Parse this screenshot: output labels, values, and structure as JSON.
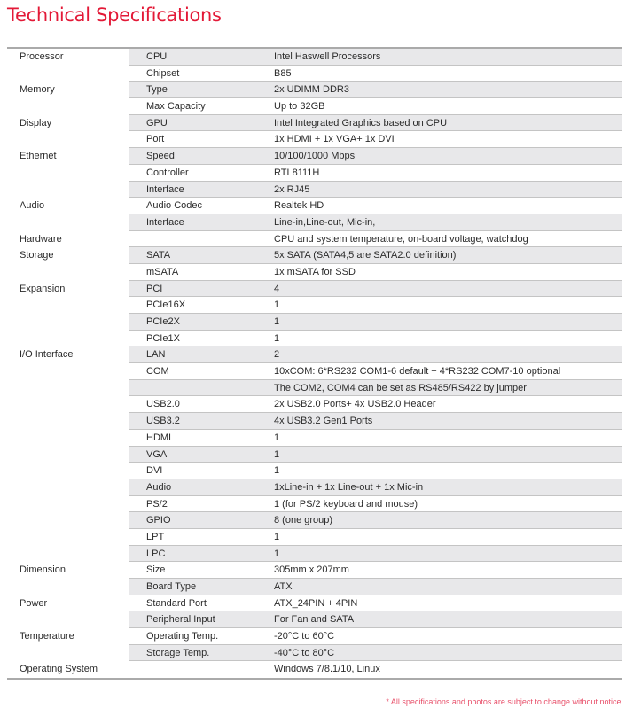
{
  "title": "Technical Specifications",
  "rows": [
    [
      "Processor",
      "CPU",
      "Intel Haswell Processors"
    ],
    [
      "",
      "Chipset",
      "B85"
    ],
    [
      "Memory",
      "Type",
      "2x UDIMM DDR3"
    ],
    [
      "",
      "Max Capacity",
      "Up to 32GB"
    ],
    [
      "Display",
      "GPU",
      "Intel Integrated Graphics based on CPU"
    ],
    [
      "",
      "Port",
      "1x HDMI + 1x VGA+ 1x DVI"
    ],
    [
      "Ethernet",
      "Speed",
      "10/100/1000 Mbps"
    ],
    [
      "",
      "Controller",
      "RTL8111H"
    ],
    [
      "",
      "Interface",
      "2x RJ45"
    ],
    [
      "Audio",
      "Audio Codec",
      "Realtek HD"
    ],
    [
      "",
      "Interface",
      "Line-in,Line-out, Mic-in,"
    ],
    [
      "Hardware",
      "",
      "CPU and system temperature, on-board voltage, watchdog"
    ],
    [
      "Storage",
      "SATA",
      "5x SATA (SATA4,5 are SATA2.0 definition)"
    ],
    [
      "",
      "mSATA",
      "1x mSATA for SSD"
    ],
    [
      "Expansion",
      "PCI",
      "4"
    ],
    [
      "",
      "PCIe16X",
      "1"
    ],
    [
      "",
      "PCIe2X",
      "1"
    ],
    [
      "",
      "PCIe1X",
      "1"
    ],
    [
      "I/O Interface",
      "LAN",
      "2"
    ],
    [
      "",
      "COM",
      "10xCOM: 6*RS232 COM1-6 default + 4*RS232 COM7-10 optional"
    ],
    [
      "",
      "",
      "The COM2, COM4 can be set as RS485/RS422 by jumper"
    ],
    [
      "",
      "USB2.0",
      "2x USB2.0 Ports+ 4x USB2.0 Header"
    ],
    [
      "",
      "USB3.2",
      "4x USB3.2 Gen1 Ports"
    ],
    [
      "",
      "HDMI",
      "1"
    ],
    [
      "",
      "VGA",
      "1"
    ],
    [
      "",
      "DVI",
      "1"
    ],
    [
      "",
      "Audio",
      "1xLine-in + 1x Line-out + 1x Mic-in"
    ],
    [
      "",
      "PS/2",
      "1 (for PS/2 keyboard and mouse)"
    ],
    [
      "",
      "GPIO",
      "8 (one group)"
    ],
    [
      "",
      "LPT",
      "1"
    ],
    [
      "",
      "LPC",
      "1"
    ],
    [
      "Dimension",
      "Size",
      "305mm x 207mm"
    ],
    [
      "",
      "Board Type",
      "ATX"
    ],
    [
      "Power",
      "Standard Port",
      "ATX_24PIN + 4PIN"
    ],
    [
      "",
      "Peripheral Input",
      "For Fan and SATA"
    ],
    [
      "Temperature",
      "Operating Temp.",
      "-20°C to 60°C"
    ],
    [
      "",
      "Storage Temp.",
      "-40°C to 80°C"
    ],
    [
      "Operating System",
      "",
      "Windows 7/8.1/10, Linux"
    ]
  ],
  "note": "* All specifications and photos are subject to change without notice.",
  "colors": {
    "accent": "#e31937",
    "band": "#e8e8ea"
  }
}
